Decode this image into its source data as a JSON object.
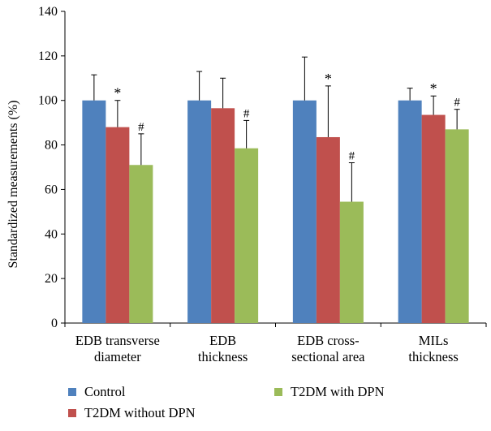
{
  "chart_data": {
    "type": "bar",
    "ylabel": "Standardized measurements (%)",
    "ylim": [
      0,
      140
    ],
    "yticks": [
      0,
      20,
      40,
      60,
      80,
      100,
      120,
      140
    ],
    "grid": false,
    "legend_position": "bottom",
    "categories": [
      [
        "EDB transverse",
        "diameter"
      ],
      [
        "EDB",
        "thickness"
      ],
      [
        "EDB cross-",
        "sectional area"
      ],
      [
        "MILs",
        "thickness"
      ]
    ],
    "series": [
      {
        "name": "Control",
        "color": "#4F81BD",
        "values": [
          100,
          100,
          100,
          100
        ],
        "errors": [
          11.5,
          13,
          19.5,
          5.5
        ],
        "annotations": [
          "",
          "",
          "",
          ""
        ]
      },
      {
        "name": "T2DM without DPN",
        "color": "#C0504D",
        "values": [
          88,
          96.5,
          83.5,
          93.5
        ],
        "errors": [
          12,
          13.5,
          23,
          8.5
        ],
        "annotations": [
          "*",
          "",
          "*",
          "*"
        ]
      },
      {
        "name": "T2DM with DPN",
        "color": "#9BBB59",
        "values": [
          71,
          78.5,
          54.5,
          87
        ],
        "errors": [
          14,
          12.5,
          17.5,
          9
        ],
        "annotations": [
          "#",
          "#",
          "#",
          "#"
        ]
      }
    ]
  }
}
